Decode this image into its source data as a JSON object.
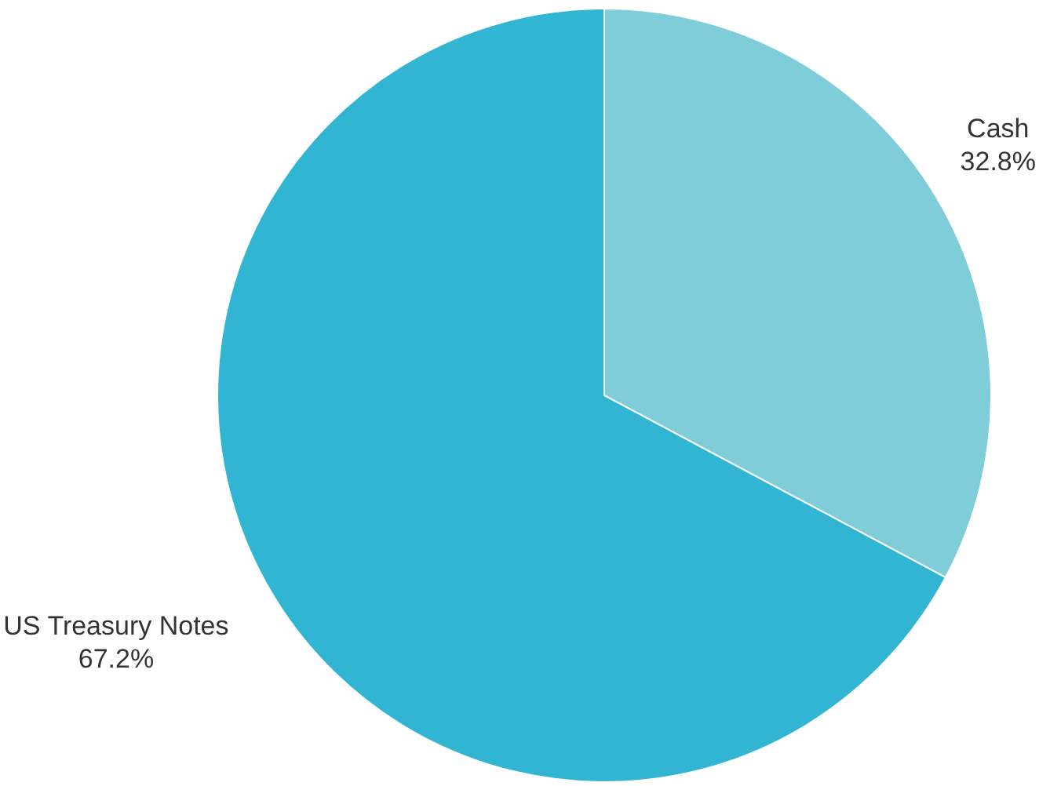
{
  "chart_data": {
    "type": "pie",
    "categories": [
      "Cash",
      "US Treasury Notes"
    ],
    "values": [
      32.8,
      67.2
    ],
    "colors": [
      "#7ecdd8",
      "#31b5d3"
    ],
    "value_labels": [
      "32.8%",
      "67.2%"
    ],
    "legend": false
  }
}
